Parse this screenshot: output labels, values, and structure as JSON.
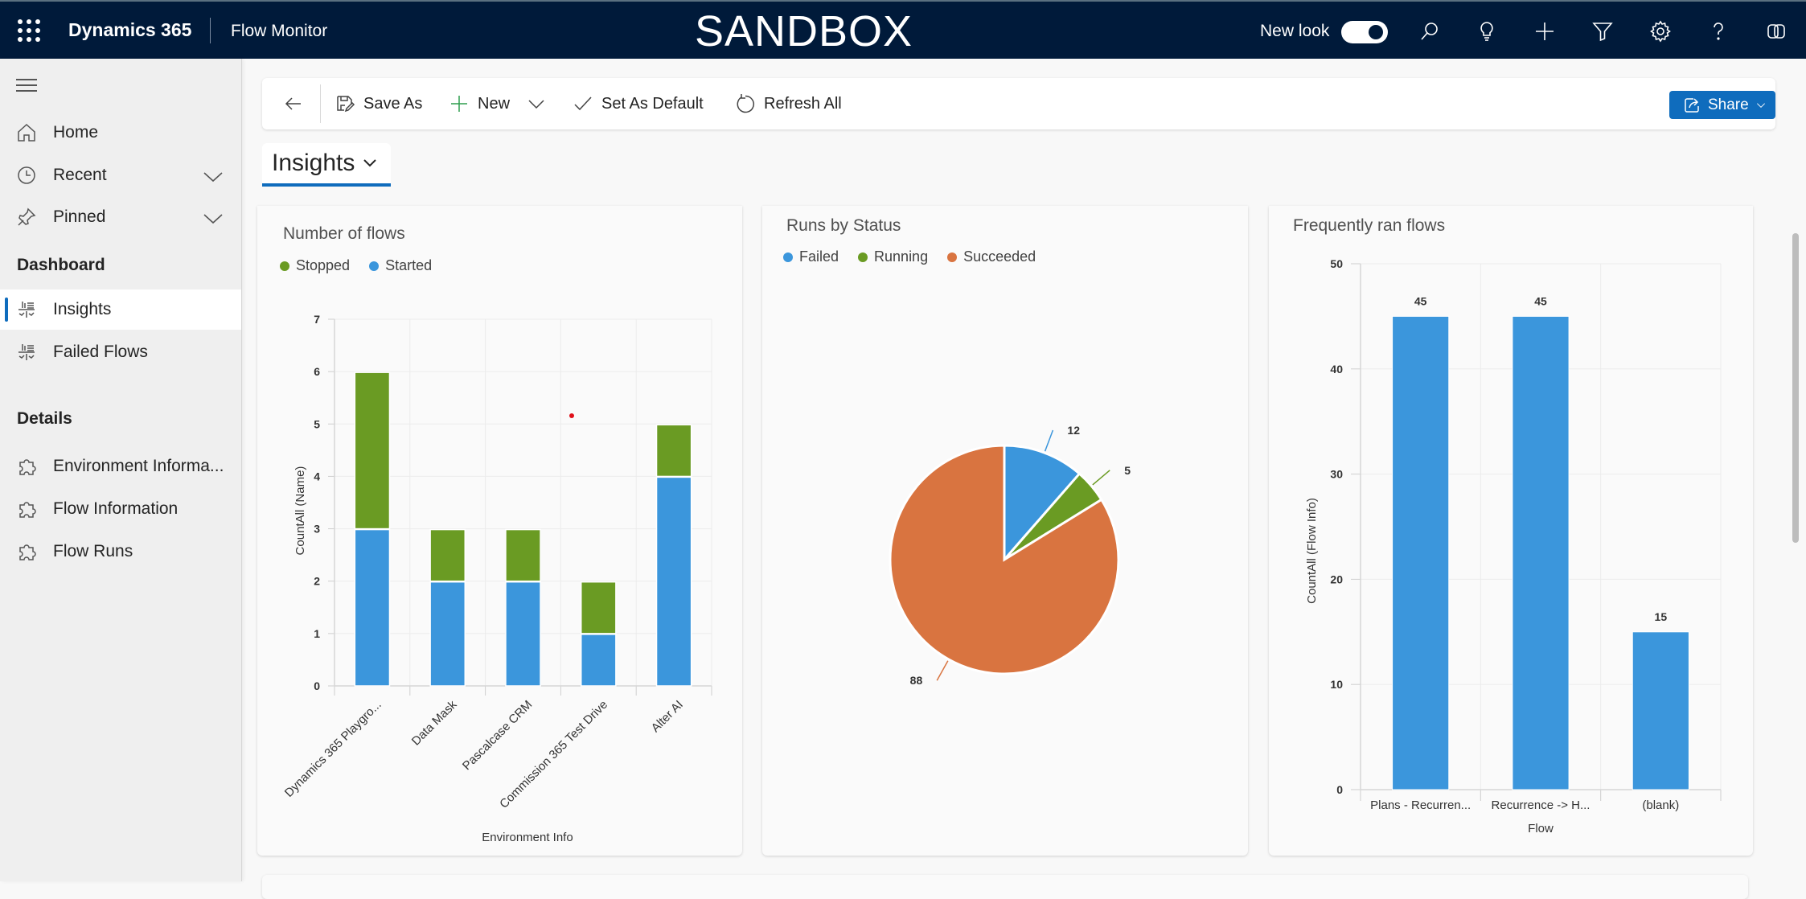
{
  "topbar": {
    "app_name": "Dynamics 365",
    "module_name": "Flow Monitor",
    "environment_label": "SANDBOX",
    "new_look_label": "New look",
    "new_look_enabled": true,
    "icons": [
      "search-icon",
      "lightbulb-icon",
      "plus-icon",
      "filter-icon",
      "settings-icon",
      "help-icon",
      "copilot-icon"
    ]
  },
  "sidebar": {
    "top_items": [
      {
        "label": "Home",
        "icon": "home-icon"
      },
      {
        "label": "Recent",
        "icon": "clock-icon",
        "expandable": true
      },
      {
        "label": "Pinned",
        "icon": "pin-icon",
        "expandable": true
      }
    ],
    "sections": [
      {
        "title": "Dashboard",
        "items": [
          {
            "label": "Insights",
            "icon": "dashboard-icon",
            "active": true
          },
          {
            "label": "Failed Flows",
            "icon": "dashboard-icon",
            "active": false
          }
        ]
      },
      {
        "title": "Details",
        "items": [
          {
            "label": "Environment Informa...",
            "icon": "puzzle-icon"
          },
          {
            "label": "Flow Information",
            "icon": "puzzle-icon"
          },
          {
            "label": "Flow Runs",
            "icon": "puzzle-icon"
          }
        ]
      }
    ]
  },
  "commandbar": {
    "back_label": "Back",
    "save_as": "Save As",
    "new": "New",
    "set_default": "Set As Default",
    "refresh_all": "Refresh All",
    "share": "Share"
  },
  "view": {
    "selected": "Insights"
  },
  "colors": {
    "blue": "#3b96dc",
    "green": "#6a9b23",
    "orange": "#d97440",
    "accent": "#0f6cbd",
    "topbar": "#001a3a"
  },
  "chart_data": [
    {
      "type": "bar",
      "stacked": true,
      "title": "Number of flows",
      "xlabel": "Environment Info",
      "ylabel": "CountAll (Name)",
      "categories": [
        "Dynamics 365 Playgro...",
        "Data Mask",
        "Pascalcase CRM",
        "Commission 365 Test Drive",
        "Alter AI"
      ],
      "series": [
        {
          "name": "Started",
          "color": "#3b96dc",
          "values": [
            3,
            2,
            2,
            1,
            4
          ]
        },
        {
          "name": "Stopped",
          "color": "#6a9b23",
          "values": [
            3,
            1,
            1,
            1,
            1
          ]
        }
      ],
      "legend": [
        {
          "name": "Stopped",
          "color": "#6a9b23"
        },
        {
          "name": "Started",
          "color": "#3b96dc"
        }
      ],
      "legend_position": "top-left",
      "ylim": [
        0,
        7
      ],
      "yticks": [
        0,
        1,
        2,
        3,
        4,
        5,
        6,
        7
      ],
      "grid": true
    },
    {
      "type": "pie",
      "title": "Runs by Status",
      "labels": [
        "Failed",
        "Running",
        "Succeeded"
      ],
      "values": [
        12,
        5,
        88
      ],
      "colors": [
        "#3b96dc",
        "#6a9b23",
        "#d97440"
      ],
      "legend_position": "top-left"
    },
    {
      "type": "bar",
      "title": "Frequently ran flows",
      "xlabel": "Flow",
      "ylabel": "CountAll (Flow Info)",
      "categories": [
        "Plans - Recurren...",
        "Recurrence -> H...",
        "(blank)"
      ],
      "values": [
        45,
        45,
        15
      ],
      "color": "#3b96dc",
      "ylim": [
        0,
        50
      ],
      "yticks": [
        0,
        10,
        20,
        30,
        40,
        50
      ],
      "data_labels": true,
      "grid": true
    }
  ]
}
